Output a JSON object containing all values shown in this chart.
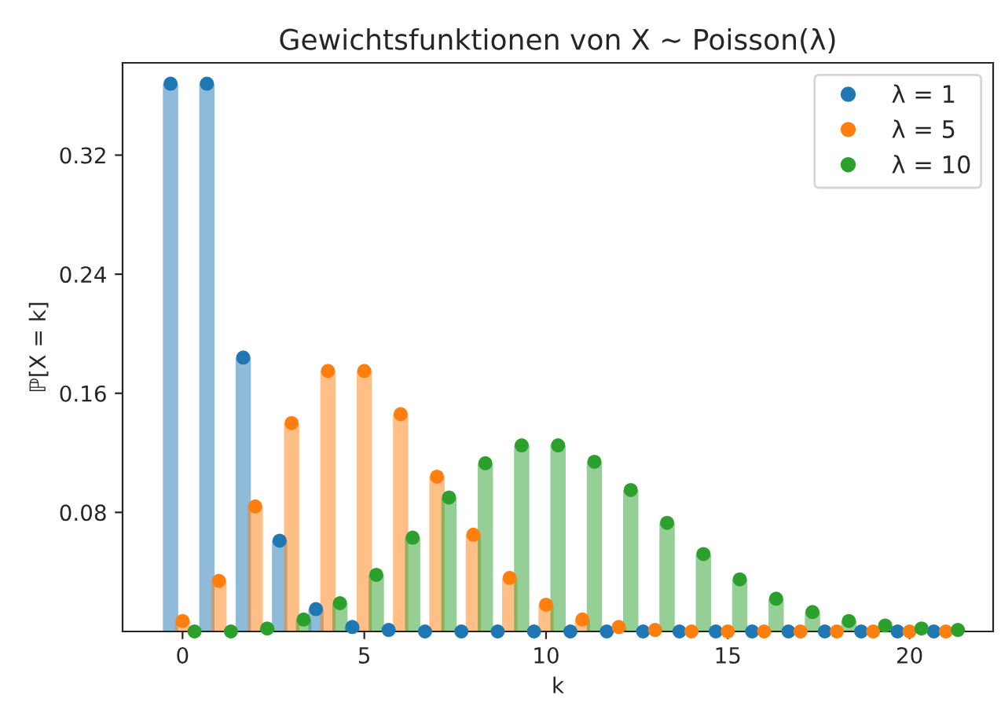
{
  "chart_data": {
    "type": "lollipop",
    "title": "Gewichtsfunktionen von X ∼ Poisson(λ)",
    "xlabel": "k",
    "ylabel": "ℙ[X = k]",
    "xlim": [
      -1.65,
      22.3
    ],
    "xticks": [
      0,
      5,
      10,
      15,
      20
    ],
    "ylim": [
      0,
      0.382
    ],
    "yticks": [
      0.08,
      0.16,
      0.24,
      0.32
    ],
    "grid": false,
    "legend": "top right",
    "marker": "circle",
    "series": [
      {
        "name": "λ = 1",
        "color": "#1f77b4",
        "x": [
          -0.33,
          0.67,
          1.67,
          2.67,
          3.67,
          4.67,
          5.67,
          6.67,
          7.67,
          8.67,
          9.67,
          10.67,
          11.67,
          12.67,
          13.67,
          14.67,
          15.67,
          16.67,
          17.67,
          18.67,
          19.67,
          20.67
        ],
        "values": [
          0.368,
          0.368,
          0.184,
          0.061,
          0.015,
          0.003,
          0.001,
          0,
          0,
          0,
          0,
          0,
          0,
          0,
          0,
          0,
          0,
          0,
          0,
          0,
          0,
          0
        ]
      },
      {
        "name": "λ = 5",
        "color": "#ff7f0e",
        "x": [
          0,
          1,
          2,
          3,
          4,
          5,
          6,
          7,
          8,
          9,
          10,
          11,
          12,
          13,
          14,
          15,
          16,
          17,
          18,
          19,
          20,
          21
        ],
        "values": [
          0.007,
          0.034,
          0.084,
          0.14,
          0.175,
          0.175,
          0.146,
          0.104,
          0.065,
          0.036,
          0.018,
          0.008,
          0.003,
          0.001,
          0,
          0,
          0,
          0,
          0,
          0,
          0,
          0
        ]
      },
      {
        "name": "λ = 10",
        "color": "#2ca02c",
        "x": [
          0.33,
          1.33,
          2.33,
          3.33,
          4.33,
          5.33,
          6.33,
          7.33,
          8.33,
          9.33,
          10.33,
          11.33,
          12.33,
          13.33,
          14.33,
          15.33,
          16.33,
          17.33,
          18.33,
          19.33,
          20.33,
          21.33
        ],
        "values": [
          0,
          0,
          0.002,
          0.008,
          0.019,
          0.038,
          0.063,
          0.09,
          0.113,
          0.125,
          0.125,
          0.114,
          0.095,
          0.073,
          0.052,
          0.035,
          0.022,
          0.013,
          0.007,
          0.004,
          0.002,
          0.001
        ]
      }
    ]
  }
}
